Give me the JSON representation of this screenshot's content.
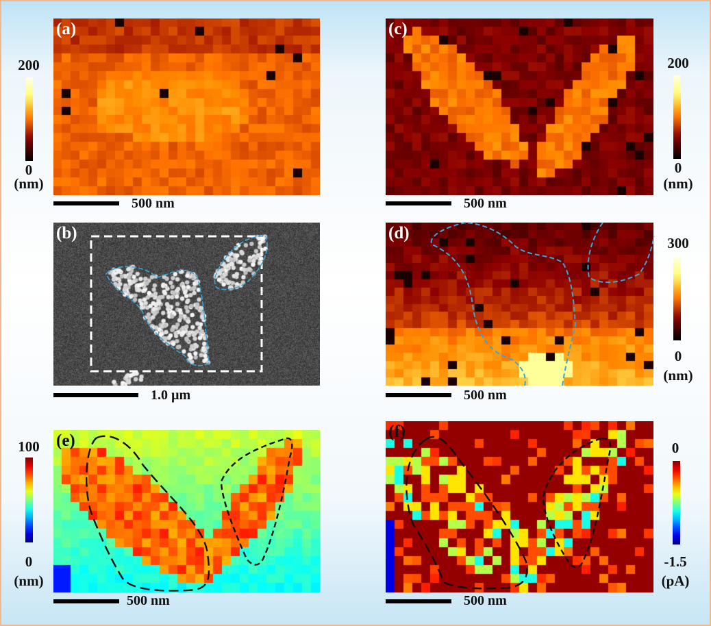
{
  "panels": {
    "a": {
      "label": "(a)",
      "cbar_max": "200",
      "cbar_min": "0",
      "unit": "(nm)",
      "scale": "500 nm",
      "colormap": "afmhot"
    },
    "b": {
      "label": "(b)",
      "scale": "1.0 µm",
      "colormap": "gray"
    },
    "c": {
      "label": "(c)",
      "cbar_max": "200",
      "cbar_min": "0",
      "unit": "(nm)",
      "scale": "500 nm",
      "colormap": "afmhot"
    },
    "d": {
      "label": "(d)",
      "cbar_max": "300",
      "cbar_min": "0",
      "unit": "(nm)",
      "scale": "500 nm",
      "colormap": "afmhot"
    },
    "e": {
      "label": "(e)",
      "cbar_max": "100",
      "cbar_min": "0",
      "unit": "(nm)",
      "scale": "500 nm",
      "colormap": "jet"
    },
    "f": {
      "label": "(f)",
      "cbar_max": "0",
      "cbar_min": "-1.5",
      "unit": "(pA)",
      "scale": "500 nm",
      "colormap": "jet"
    }
  },
  "colors": {
    "border": "#f0b890",
    "outline_blue": "#3aa6d8",
    "outline_black": "#111111"
  }
}
